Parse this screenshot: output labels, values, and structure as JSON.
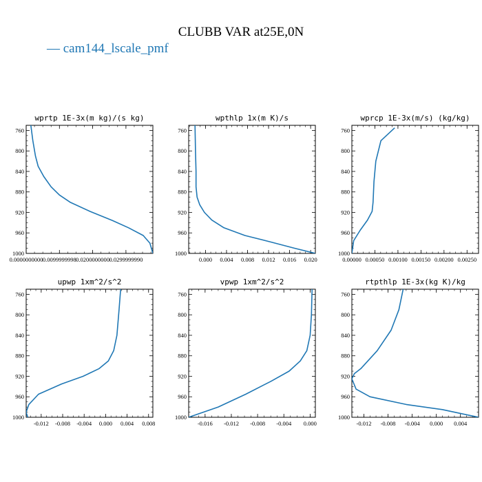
{
  "page": {
    "title": "CLUBB VAR at25E,0N",
    "legend_label": "— cam144_lscale_pmf",
    "series_color": "#1f77b4"
  },
  "chart_data": [
    {
      "type": "line",
      "title": "wprtp  1E-3x(m kg)/(s kg)",
      "xlim": [
        0.0,
        0.0381
      ],
      "ylim": [
        1000,
        750
      ],
      "y_ticks": [
        760,
        800,
        840,
        880,
        920,
        960,
        1000
      ],
      "x_ticks": [
        {
          "value": 0.0,
          "label": "0.0000000000"
        },
        {
          "value": 0.0099999998,
          "label": "0.0099999998"
        },
        {
          "value": 0.02,
          "label": "0.0200000000"
        },
        {
          "value": 0.029999999,
          "label": "0.0299999990"
        }
      ],
      "series": [
        {
          "x": [
            0.0014,
            0.002,
            0.0028,
            0.0036,
            0.0053,
            0.0075,
            0.01,
            0.0132,
            0.0192,
            0.026,
            0.0308,
            0.0352,
            0.0372,
            0.0381
          ],
          "y": [
            750,
            780,
            810,
            830,
            850,
            870,
            886,
            900,
            918,
            936,
            950,
            965,
            980,
            1000
          ]
        }
      ]
    },
    {
      "type": "line",
      "title": "wpthlp  1x(m K)/s",
      "xlim": [
        -0.0032,
        0.0209
      ],
      "ylim": [
        1000,
        750
      ],
      "y_ticks": [
        760,
        800,
        840,
        880,
        920,
        960,
        1000
      ],
      "x_ticks": [
        {
          "value": 0.0,
          "label": "0.000"
        },
        {
          "value": 0.004,
          "label": "0.004"
        },
        {
          "value": 0.008,
          "label": "0.008"
        },
        {
          "value": 0.012,
          "label": "0.012"
        },
        {
          "value": 0.016,
          "label": "0.016"
        },
        {
          "value": 0.02,
          "label": "0.020"
        }
      ],
      "series": [
        {
          "x": [
            -0.002,
            -0.0019,
            -0.0018,
            -0.0018,
            -0.0016,
            -0.0011,
            -0.0002,
            0.0012,
            0.0035,
            0.0075,
            0.0125,
            0.017,
            0.0209
          ],
          "y": [
            750,
            800,
            840,
            870,
            890,
            905,
            920,
            935,
            950,
            965,
            978,
            990,
            1000
          ]
        }
      ]
    },
    {
      "type": "line",
      "title": "wprcp  1E-3x(m/s) (kg/kg)",
      "xlim": [
        0.0,
        0.00275
      ],
      "ylim": [
        1000,
        750
      ],
      "y_ticks": [
        760,
        800,
        840,
        880,
        920,
        960,
        1000
      ],
      "x_ticks": [
        {
          "value": 0.0,
          "label": "0.00000"
        },
        {
          "value": 0.0005,
          "label": "0.00050"
        },
        {
          "value": 0.001,
          "label": "0.00100"
        },
        {
          "value": 0.0015,
          "label": "0.00150"
        },
        {
          "value": 0.002,
          "label": "0.00200"
        },
        {
          "value": 0.0025,
          "label": "0.00250"
        }
      ],
      "series": [
        {
          "x": [
            0.00093,
            0.00063,
            0.00052,
            0.00048,
            0.00046,
            0.00044,
            0.00034,
            0.00018,
            4e-05,
            0.0
          ],
          "y": [
            755,
            780,
            820,
            860,
            900,
            918,
            935,
            955,
            975,
            1000
          ]
        }
      ]
    },
    {
      "type": "line",
      "title": "upwp  1xm^2/s^2",
      "xlim": [
        -0.0148,
        0.0088
      ],
      "ylim": [
        1000,
        750
      ],
      "y_ticks": [
        760,
        800,
        840,
        880,
        920,
        960,
        1000
      ],
      "x_ticks": [
        {
          "value": -0.012,
          "label": "-0.012"
        },
        {
          "value": -0.008,
          "label": "-0.008"
        },
        {
          "value": -0.004,
          "label": "-0.004"
        },
        {
          "value": 0.0,
          "label": "0.000"
        },
        {
          "value": 0.004,
          "label": "0.004"
        },
        {
          "value": 0.008,
          "label": "0.008"
        }
      ],
      "series": [
        {
          "x": [
            0.0028,
            0.0025,
            0.0021,
            0.0015,
            0.0005,
            -0.0012,
            -0.0042,
            -0.0082,
            -0.0125,
            -0.0143,
            -0.0148,
            -0.0145
          ],
          "y": [
            750,
            790,
            840,
            870,
            890,
            905,
            920,
            935,
            955,
            975,
            990,
            1000
          ]
        }
      ]
    },
    {
      "type": "line",
      "title": "vpwp  1xm^2/s^2",
      "xlim": [
        -0.0185,
        0.0008
      ],
      "ylim": [
        1000,
        750
      ],
      "y_ticks": [
        760,
        800,
        840,
        880,
        920,
        960,
        1000
      ],
      "x_ticks": [
        {
          "value": -0.016,
          "label": "-0.016"
        },
        {
          "value": -0.012,
          "label": "-0.012"
        },
        {
          "value": -0.008,
          "label": "-0.008"
        },
        {
          "value": -0.004,
          "label": "-0.004"
        },
        {
          "value": 0.0,
          "label": "0.000"
        }
      ],
      "series": [
        {
          "x": [
            0.0003,
            0.0002,
            0.0,
            -0.0005,
            -0.0015,
            -0.0032,
            -0.006,
            -0.0098,
            -0.014,
            -0.0185
          ],
          "y": [
            750,
            800,
            840,
            870,
            890,
            910,
            930,
            955,
            980,
            1000
          ]
        }
      ]
    },
    {
      "type": "line",
      "title": "rtpthlp  1E-3x(kg K)/kg",
      "xlim": [
        -0.014,
        0.007
      ],
      "ylim": [
        1000,
        750
      ],
      "y_ticks": [
        760,
        800,
        840,
        880,
        920,
        960,
        1000
      ],
      "x_ticks": [
        {
          "value": -0.012,
          "label": "-0.012"
        },
        {
          "value": -0.008,
          "label": "-0.008"
        },
        {
          "value": -0.004,
          "label": "-0.004"
        },
        {
          "value": 0.0,
          "label": "0.000"
        },
        {
          "value": 0.004,
          "label": "0.004"
        }
      ],
      "series": [
        {
          "x": [
            -0.0055,
            -0.0062,
            -0.0075,
            -0.0098,
            -0.0125,
            -0.0136,
            -0.014,
            -0.0133,
            -0.011,
            -0.005,
            0.001,
            0.005,
            0.007
          ],
          "y": [
            750,
            790,
            830,
            870,
            905,
            915,
            925,
            945,
            960,
            975,
            985,
            995,
            1000
          ]
        }
      ]
    }
  ]
}
